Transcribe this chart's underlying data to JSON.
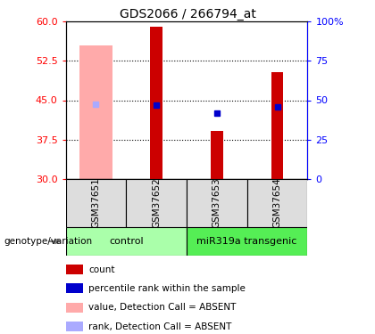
{
  "title": "GDS2066 / 266794_at",
  "samples": [
    "GSM37651",
    "GSM37652",
    "GSM37653",
    "GSM37654"
  ],
  "ylim_left": [
    30,
    60
  ],
  "ylim_right": [
    0,
    100
  ],
  "yticks_left": [
    30,
    37.5,
    45,
    52.5,
    60
  ],
  "yticks_right": [
    0,
    25,
    50,
    75,
    100
  ],
  "bar_bottom": 30,
  "bar_values": [
    null,
    59.0,
    39.2,
    50.3
  ],
  "bar_absent_values": [
    55.5,
    null,
    null,
    null
  ],
  "rank_values": [
    null,
    44.0,
    42.5,
    43.8
  ],
  "rank_absent_values": [
    44.2,
    null,
    null,
    null
  ],
  "bar_color_present": "#cc0000",
  "bar_color_absent": "#ffaaaa",
  "rank_color_present": "#0000cc",
  "rank_color_absent": "#aaaaff",
  "control_color": "#aaffaa",
  "transgenic_color": "#55ee55",
  "sample_box_color": "#dddddd",
  "group_label": "genotype/variation",
  "control_label": "control",
  "transgenic_label": "miR319a transgenic",
  "legend_items": [
    {
      "label": "count",
      "color": "#cc0000"
    },
    {
      "label": "percentile rank within the sample",
      "color": "#0000cc"
    },
    {
      "label": "value, Detection Call = ABSENT",
      "color": "#ffaaaa"
    },
    {
      "label": "rank, Detection Call = ABSENT",
      "color": "#aaaaff"
    }
  ]
}
